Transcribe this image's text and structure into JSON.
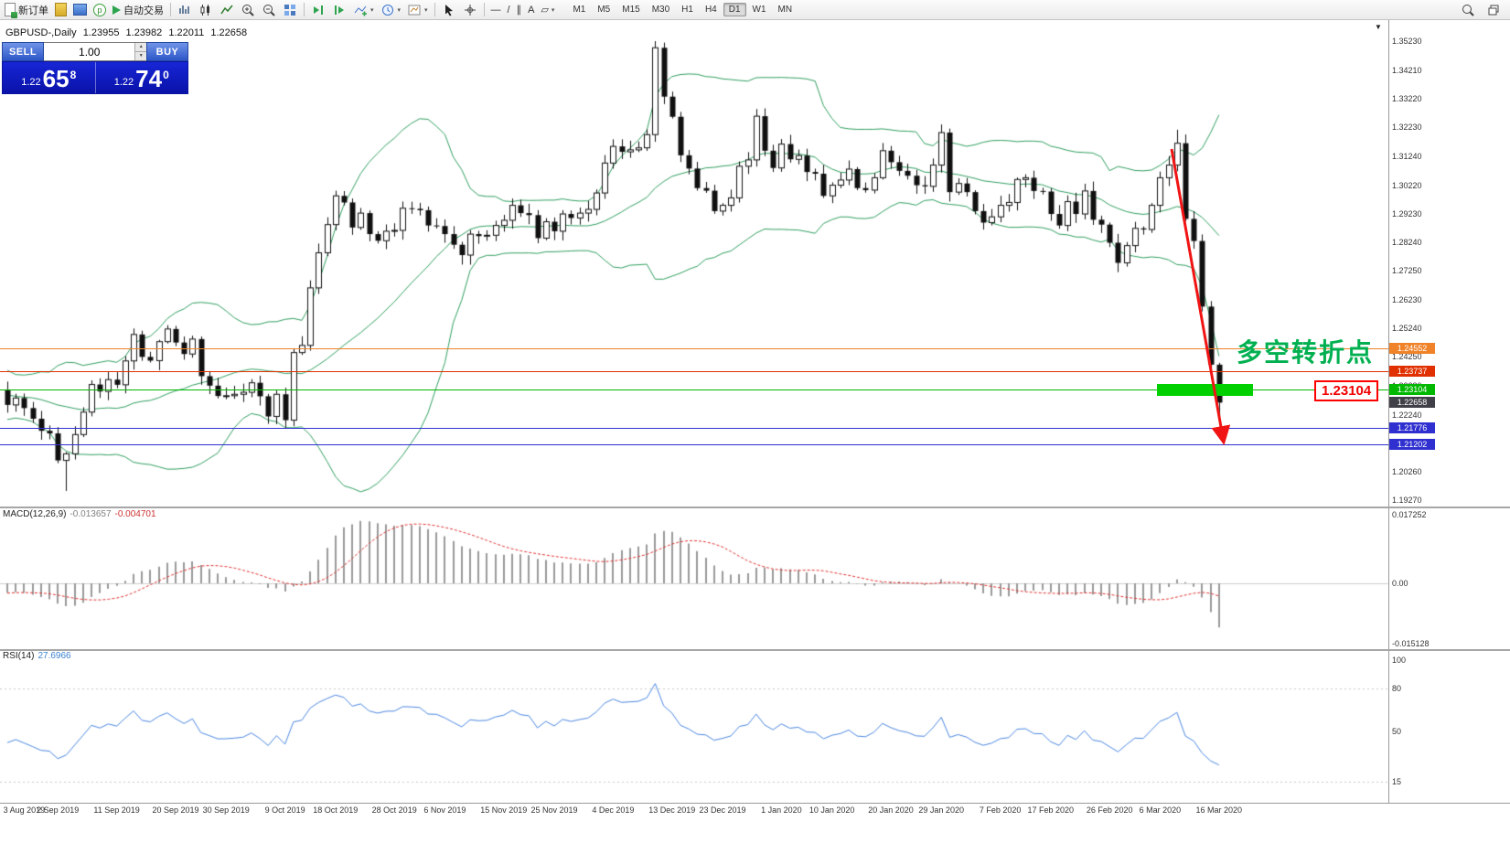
{
  "toolbar": {
    "new_order_label": "新订单",
    "auto_trading_label": "自动交易",
    "timeframes": [
      "M1",
      "M5",
      "M15",
      "M30",
      "H1",
      "H4",
      "D1",
      "W1",
      "MN"
    ],
    "active_timeframe": "D1"
  },
  "icons": {
    "community_glyph": "p",
    "dropdown_glyph": "▾",
    "spinner_up": "▲",
    "spinner_down": "▼",
    "scroll_end_glyph": "▼",
    "hline_tool_glyph": "—",
    "trendline_tool_glyph": "/",
    "channel_tool_glyph": "∥",
    "text_tool_glyph": "A",
    "shapes_tool_glyph": "▱"
  },
  "chart_header": {
    "symbol": "GBPUSD-,Daily",
    "open": "1.23955",
    "high": "1.23982",
    "low": "1.22011",
    "close": "1.22658"
  },
  "trade_panel": {
    "sell_label": "SELL",
    "buy_label": "BUY",
    "volume": "1.00",
    "sell_price_main": "1.22",
    "sell_price_pips": "65",
    "sell_price_sup": "8",
    "buy_price_main": "1.22",
    "buy_price_pips": "74",
    "buy_price_sup": "0"
  },
  "annotations": {
    "turning_point_text": "多空转折点",
    "boxed_price_label": "1.23104"
  },
  "price_scale": [
    "1.35230",
    "1.34210",
    "1.33220",
    "1.32230",
    "1.31240",
    "1.30220",
    "1.29230",
    "1.28240",
    "1.27250",
    "1.26230",
    "1.25240",
    "1.24250",
    "1.23230",
    "1.22240",
    "1.21250",
    "1.20260",
    "1.19270"
  ],
  "macd_panel": {
    "name": "MACD(12,26,9)",
    "value_main": "-0.013657",
    "value_signal": "-0.004701",
    "scale": [
      {
        "label": "0.017252",
        "value": 0.017252
      },
      {
        "label": "0.00",
        "value": 0
      },
      {
        "label": "-0.015128",
        "value": -0.015128
      }
    ]
  },
  "rsi_panel": {
    "name": "RSI(14)",
    "value": "27.6966",
    "scale": [
      {
        "label": "100",
        "value": 100
      },
      {
        "label": "80",
        "value": 80
      },
      {
        "label": "50",
        "value": 50
      },
      {
        "label": "15",
        "value": 15
      }
    ]
  },
  "dates": [
    "3 Aug 2019",
    "2 Sep 2019",
    "11 Sep 2019",
    "20 Sep 2019",
    "30 Sep 2019",
    "9 Oct 2019",
    "18 Oct 2019",
    "28 Oct 2019",
    "6 Nov 2019",
    "15 Nov 2019",
    "25 Nov 2019",
    "4 Dec 2019",
    "13 Dec 2019",
    "23 Dec 2019",
    "1 Jan 2020",
    "10 Jan 2020",
    "20 Jan 2020",
    "29 Jan 2020",
    "7 Feb 2020",
    "17 Feb 2020",
    "26 Feb 2020",
    "6 Mar 2020",
    "16 Mar 2020"
  ],
  "date_indices": [
    2,
    6,
    13,
    20,
    26,
    33,
    39,
    46,
    52,
    59,
    65,
    72,
    79,
    85,
    92,
    98,
    105,
    111,
    118,
    124,
    131,
    137,
    144
  ],
  "chart_data": {
    "type": "candlestick",
    "symbol": "GBPUSD",
    "period": "Daily",
    "indicators": [
      "Bollinger Bands (green)",
      "MACD(12,26,9)",
      "RSI(14)"
    ],
    "price_axis": {
      "top": 1.3523,
      "bottom": 1.1927
    },
    "macd_axis": {
      "top": 0.017252,
      "bottom": -0.015128
    },
    "levels": [
      {
        "price": 1.24552,
        "label": "1.24552",
        "color": "#f08228",
        "line": true
      },
      {
        "price": 1.23737,
        "label": "1.23737",
        "color": "#e03000",
        "line": true
      },
      {
        "price": 1.23104,
        "label": "1.23104",
        "color": "#00b800",
        "line": true
      },
      {
        "price": 1.22658,
        "label": "1.22658",
        "color": "#404048",
        "line": false,
        "current": true
      },
      {
        "price": 1.21776,
        "label": "1.21776",
        "color": "#3030d0",
        "line": true
      },
      {
        "price": 1.21202,
        "label": "1.21202",
        "color": "#3030d0",
        "line": true
      }
    ],
    "pre_closes": [
      1.2405,
      1.238,
      1.231,
      1.2255,
      1.229,
      1.234,
      1.226,
      1.2205,
      1.228,
      1.233,
      1.229,
      1.224,
      1.231,
      1.236,
      1.23,
      1.225,
      1.2305,
      1.2345,
      1.229,
      1.226
    ],
    "closes": [
      1.2258,
      1.2282,
      1.2247,
      1.221,
      1.2168,
      1.2159,
      1.2065,
      1.2088,
      1.2155,
      1.2233,
      1.2329,
      1.2305,
      1.2346,
      1.2328,
      1.2411,
      1.2503,
      1.2425,
      1.2412,
      1.2478,
      1.2522,
      1.2475,
      1.2435,
      1.2487,
      1.2358,
      1.2325,
      1.2289,
      1.229,
      1.2295,
      1.2302,
      1.2335,
      1.2288,
      1.2218,
      1.2295,
      1.2205,
      1.244,
      1.2465,
      1.2665,
      1.2787,
      1.2885,
      1.2985,
      1.2962,
      1.2875,
      1.2925,
      1.2852,
      1.2829,
      1.2862,
      1.2865,
      1.2942,
      1.294,
      1.2935,
      1.2882,
      1.288,
      1.2852,
      1.2815,
      1.2779,
      1.2852,
      1.2845,
      1.2848,
      1.2882,
      1.29,
      1.2952,
      1.2925,
      1.2918,
      1.2838,
      1.2895,
      1.2862,
      1.2922,
      1.2908,
      1.2925,
      1.2938,
      1.2995,
      1.3099,
      1.3157,
      1.3138,
      1.3145,
      1.3152,
      1.3198,
      1.35,
      1.333,
      1.326,
      1.3126,
      1.308,
      1.3012,
      1.3003,
      1.2932,
      1.2952,
      1.2978,
      1.3088,
      1.311,
      1.3262,
      1.3142,
      1.3082,
      1.3165,
      1.3112,
      1.3125,
      1.3068,
      1.3062,
      1.2985,
      1.3022,
      1.304,
      1.3078,
      1.3012,
      1.3005,
      1.3048,
      1.3142,
      1.3102,
      1.3072,
      1.3055,
      1.3022,
      1.3018,
      1.3092,
      1.3205,
      1.2998,
      1.3028,
      1.2998,
      1.2932,
      1.2892,
      1.2912,
      1.2952,
      1.2962,
      1.3042,
      1.3048,
      1.3002,
      1.3,
      1.2922,
      1.2882,
      1.2965,
      1.2922,
      1.3002,
      1.2902,
      1.2885,
      1.2822,
      1.2752,
      1.2812,
      1.2872,
      1.2868,
      1.2952,
      1.3048,
      1.3092,
      1.3168,
      1.2905,
      1.2828,
      1.26,
      1.2398,
      1.2266
    ],
    "wick_overrides": {
      "7": {
        "low": 1.1959
      },
      "77": {
        "high": 1.3523
      },
      "139": {
        "high": 1.3215
      },
      "144": {
        "low": 1.2201
      }
    }
  }
}
